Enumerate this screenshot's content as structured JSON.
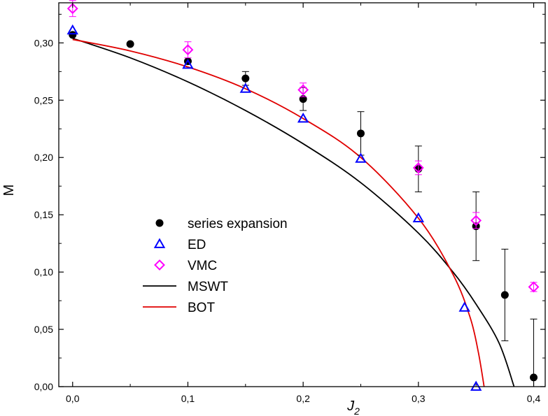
{
  "chart_data": {
    "type": "scatter",
    "xlabel": "J",
    "xlabel_sub": "2",
    "ylabel": "M",
    "xlim": [
      -0.012,
      0.41
    ],
    "ylim": [
      0.0,
      0.335
    ],
    "x_ticks": [
      0.0,
      0.1,
      0.2,
      0.3,
      0.4
    ],
    "x_tick_labels": [
      "0,0",
      "0,1",
      "0,2",
      "0,3",
      "0,4"
    ],
    "y_ticks": [
      0.0,
      0.05,
      0.1,
      0.15,
      0.2,
      0.25,
      0.3
    ],
    "y_tick_labels": [
      "0,00",
      "0,05",
      "0,10",
      "0,15",
      "0,20",
      "0,25",
      "0,30"
    ],
    "grid": false,
    "legend_position": "center-left",
    "series": [
      {
        "name": "series expansion",
        "marker": "filled-circle",
        "color": "#000000",
        "x": [
          0.0,
          0.05,
          0.1,
          0.15,
          0.2,
          0.25,
          0.3,
          0.35,
          0.375,
          0.4
        ],
        "y": [
          0.307,
          0.299,
          0.284,
          0.269,
          0.251,
          0.221,
          0.19,
          0.14,
          0.08,
          0.008
        ],
        "err": [
          0,
          0,
          0,
          0.006,
          0.01,
          0.019,
          0.02,
          0.03,
          0.04,
          0.051
        ]
      },
      {
        "name": "ED",
        "marker": "open-triangle",
        "color": "#0000ff",
        "x": [
          0.0,
          0.1,
          0.15,
          0.2,
          0.25,
          0.3,
          0.34,
          0.35
        ],
        "y": [
          0.311,
          0.281,
          0.26,
          0.234,
          0.199,
          0.147,
          0.069,
          0.0
        ]
      },
      {
        "name": "VMC",
        "marker": "open-diamond",
        "color": "#ff00ff",
        "x": [
          0.0,
          0.1,
          0.2,
          0.3,
          0.35,
          0.4
        ],
        "y": [
          0.33,
          0.294,
          0.259,
          0.191,
          0.145,
          0.087
        ],
        "err": [
          0.007,
          0.007,
          0.006,
          0.006,
          0.007,
          0.004
        ]
      },
      {
        "name": "MSWT",
        "style": "line",
        "color": "#000000",
        "x": [
          0.0,
          0.05,
          0.1,
          0.15,
          0.2,
          0.25,
          0.3,
          0.33,
          0.35,
          0.37,
          0.383
        ],
        "y": [
          0.304,
          0.287,
          0.266,
          0.241,
          0.212,
          0.178,
          0.134,
          0.1,
          0.072,
          0.038,
          0.0
        ]
      },
      {
        "name": "BOT",
        "style": "line",
        "color": "#e00000",
        "x": [
          0.0,
          0.05,
          0.1,
          0.15,
          0.2,
          0.25,
          0.3,
          0.33,
          0.345,
          0.352,
          0.357
        ],
        "y": [
          0.303,
          0.293,
          0.279,
          0.26,
          0.234,
          0.2,
          0.147,
          0.098,
          0.06,
          0.03,
          0.0
        ]
      }
    ]
  }
}
